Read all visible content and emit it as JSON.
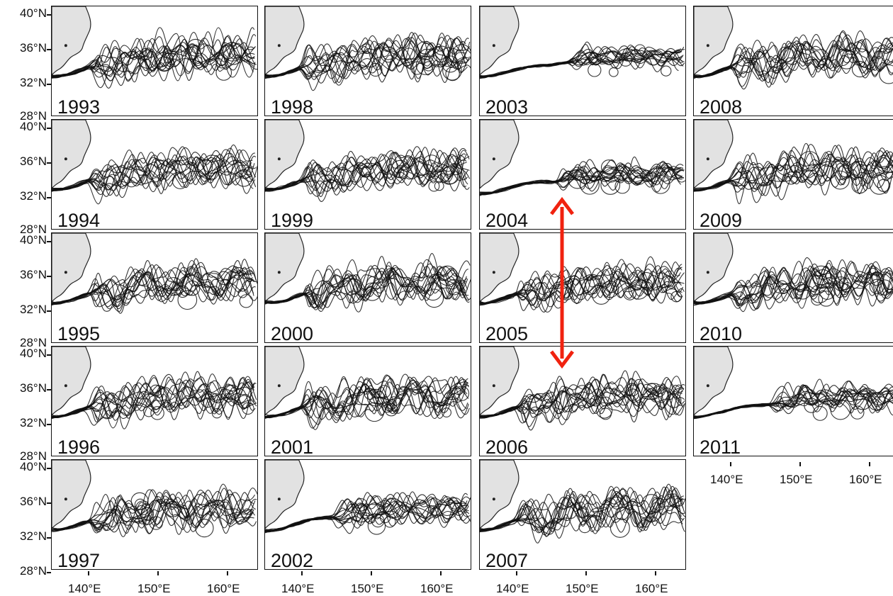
{
  "figure": {
    "lat_labels": [
      "40°N",
      "36°N",
      "32°N",
      "28°N"
    ],
    "lon_labels": [
      "140°E",
      "150°E",
      "160°E"
    ],
    "panels": [
      {
        "year": "1993",
        "col": 0,
        "row": 0
      },
      {
        "year": "1994",
        "col": 0,
        "row": 1
      },
      {
        "year": "1995",
        "col": 0,
        "row": 2
      },
      {
        "year": "1996",
        "col": 0,
        "row": 3
      },
      {
        "year": "1997",
        "col": 0,
        "row": 4
      },
      {
        "year": "1998",
        "col": 1,
        "row": 0
      },
      {
        "year": "1999",
        "col": 1,
        "row": 1
      },
      {
        "year": "2000",
        "col": 1,
        "row": 2
      },
      {
        "year": "2001",
        "col": 1,
        "row": 3
      },
      {
        "year": "2002",
        "col": 1,
        "row": 4
      },
      {
        "year": "2003",
        "col": 2,
        "row": 0
      },
      {
        "year": "2004",
        "col": 2,
        "row": 1
      },
      {
        "year": "2005",
        "col": 2,
        "row": 2
      },
      {
        "year": "2006",
        "col": 2,
        "row": 3
      },
      {
        "year": "2007",
        "col": 2,
        "row": 4
      },
      {
        "year": "2008",
        "col": 3,
        "row": 0
      },
      {
        "year": "2009",
        "col": 3,
        "row": 1
      },
      {
        "year": "2010",
        "col": 3,
        "row": 2
      },
      {
        "year": "2011",
        "col": 3,
        "row": 3
      }
    ],
    "colors": {
      "front_line": "#111111",
      "land": "#e2e2e2",
      "arrow": "#f0220f"
    }
  }
}
